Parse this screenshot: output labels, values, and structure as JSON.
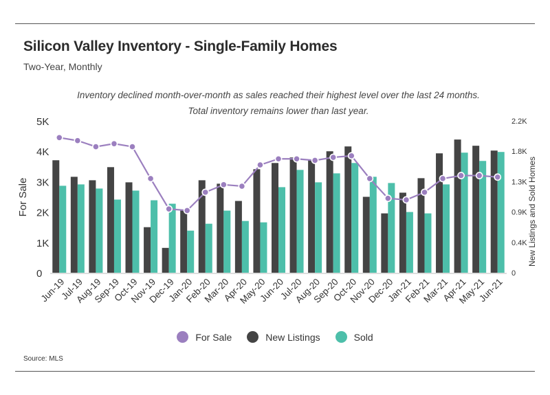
{
  "title": "Silicon Valley Inventory - Single-Family Homes",
  "subtitle": "Two-Year, Monthly",
  "annotation": "Inventory declined month-over-month as sales reached their highest level over the last 24 months. Total inventory remains lower than last year.",
  "source": "Source:  MLS",
  "colors": {
    "for_sale": "#9b7fbf",
    "new_listings": "#444444",
    "sold": "#4dbfaa"
  },
  "chart_data": {
    "type": "bar",
    "categories": [
      "Jun-19",
      "Jul-19",
      "Aug-19",
      "Sep-19",
      "Oct-19",
      "Nov-19",
      "Dec-19",
      "Jan-20",
      "Feb-20",
      "Mar-20",
      "Apr-20",
      "May-20",
      "Jun-20",
      "Jul-20",
      "Aug-20",
      "Sep-20",
      "Oct-20",
      "Nov-20",
      "Dec-20",
      "Jan-21",
      "Feb-21",
      "Mar-21",
      "Apr-21",
      "May-21",
      "Jun-21"
    ],
    "series": [
      {
        "name": "For Sale",
        "type": "line",
        "axis": "left",
        "values": [
          4450,
          4350,
          4150,
          4250,
          4150,
          3100,
          2100,
          2050,
          2650,
          2900,
          2850,
          3550,
          3750,
          3750,
          3700,
          3800,
          3850,
          3100,
          2450,
          2400,
          2650,
          3100,
          3200,
          3200,
          3150
        ]
      },
      {
        "name": "New Listings",
        "type": "bar",
        "axis": "right",
        "values": [
          1630,
          1390,
          1340,
          1530,
          1310,
          660,
          360,
          900,
          1340,
          1290,
          1040,
          1500,
          1590,
          1670,
          1630,
          1760,
          1830,
          1100,
          860,
          1160,
          1370,
          1730,
          1930,
          1840,
          1770
        ]
      },
      {
        "name": "Sold",
        "type": "bar",
        "axis": "right",
        "values": [
          1260,
          1280,
          1220,
          1060,
          1190,
          1050,
          1000,
          610,
          710,
          900,
          750,
          730,
          1240,
          1490,
          1310,
          1440,
          1590,
          1390,
          1300,
          880,
          860,
          1280,
          1740,
          1620,
          1750
        ]
      }
    ],
    "y_left": {
      "label": "For Sale",
      "range": [
        0,
        5000
      ],
      "ticks": [
        0,
        1000,
        2000,
        3000,
        4000,
        5000
      ],
      "tick_labels": [
        "0",
        "1K",
        "2K",
        "3K",
        "4K",
        "5K"
      ]
    },
    "y_right": {
      "label": "New Listings and Sold Homes",
      "range": [
        0,
        2200
      ],
      "ticks": [
        0,
        440,
        880,
        1320,
        1760,
        2200
      ],
      "tick_labels": [
        "0",
        "0.4K",
        "0.9K",
        "1.3K",
        "1.8K",
        "2.2K"
      ]
    },
    "grid": false,
    "legend": {
      "position": "bottom",
      "entries": [
        "For Sale",
        "New Listings",
        "Sold"
      ]
    }
  }
}
